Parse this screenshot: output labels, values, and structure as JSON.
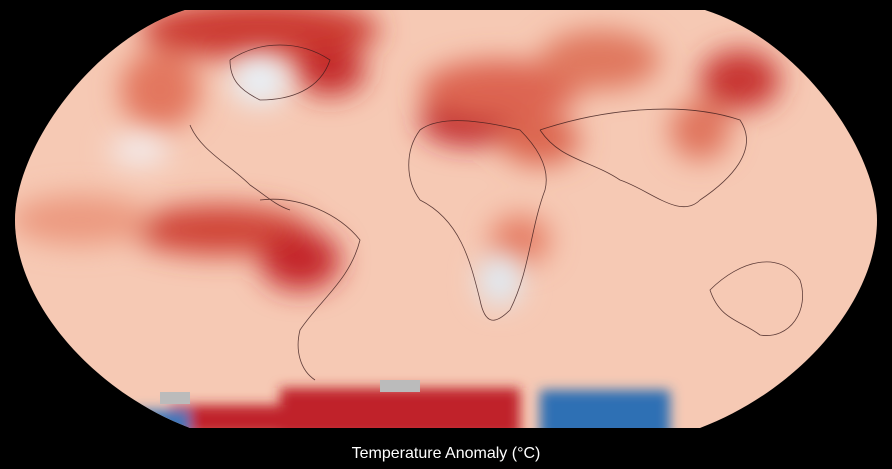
{
  "caption": "Temperature Anomaly (°C)"
}
